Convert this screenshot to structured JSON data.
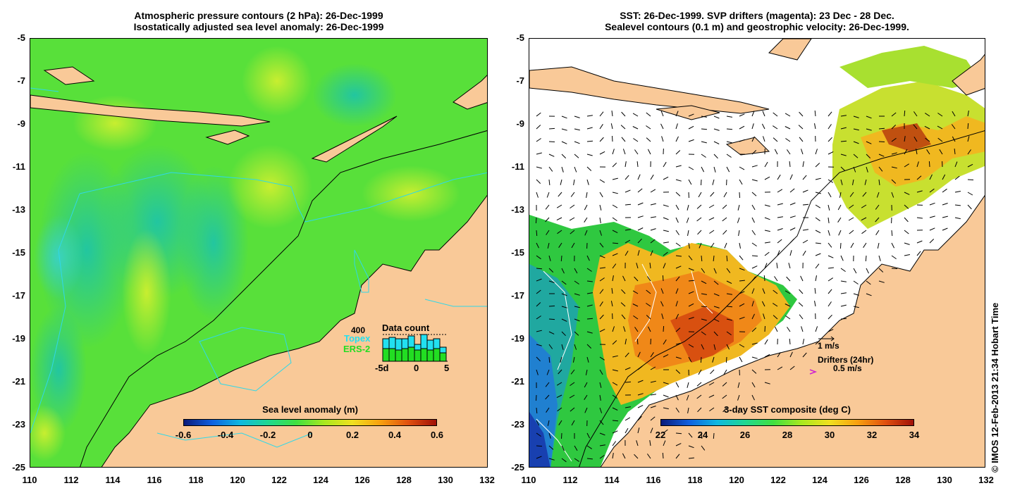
{
  "left_panel": {
    "title_line1": "Atmospheric pressure contours (2 hPa): 26-Dec-1999",
    "title_line2": "Isostatically adjusted sea level anomaly: 26-Dec-1999",
    "colorbar_label": "Sea level anomaly (m)",
    "colorbar_ticks": [
      "-0.6",
      "-0.4",
      "-0.2",
      "0",
      "0.2",
      "0.4",
      "0.6"
    ],
    "data_count": {
      "title": "Data count",
      "max_label": "400",
      "series": [
        {
          "name": "Topex",
          "color": "#22e0f0"
        },
        {
          "name": "ERS-2",
          "color": "#22dd22"
        }
      ],
      "x_ticks": [
        "-5d",
        "0",
        "5"
      ],
      "topex_values": [
        0.8,
        0.85,
        0.8,
        0.8,
        0.9,
        0.6,
        0.95,
        0.75,
        0.8,
        0.5
      ],
      "ers2_values": [
        0.45,
        0.45,
        0.4,
        0.45,
        0.5,
        0.4,
        0.45,
        0.4,
        0.45,
        0.3
      ]
    }
  },
  "right_panel": {
    "title_line1": "SST: 26-Dec-1999. SVP drifters (magenta): 23 Dec - 28 Dec.",
    "title_line2": "Sealevel contours (0.1 m) and geostrophic velocity: 26-Dec-1999.",
    "colorbar_label": "3-day SST composite (deg C)",
    "colorbar_ticks": [
      "22",
      "24",
      "26",
      "28",
      "30",
      "32",
      "34"
    ],
    "vector_legend": "1 m/s",
    "drifter_legend_title": "Drifters (24hr)",
    "drifter_legend_value": "0.5 m/s"
  },
  "axes": {
    "y_ticks": [
      "-5",
      "-7",
      "-9",
      "-11",
      "-13",
      "-15",
      "-17",
      "-19",
      "-21",
      "-23",
      "-25"
    ],
    "x_ticks": [
      "110",
      "112",
      "114",
      "116",
      "118",
      "120",
      "122",
      "124",
      "126",
      "128",
      "130",
      "132"
    ],
    "lon_range": [
      110,
      132
    ],
    "lat_range": [
      -25,
      -5
    ]
  },
  "copyright": "© IMOS 12-Feb-2013 21:34 Hobart Time",
  "colors": {
    "land": "#f9c998",
    "ocean_base": "#58e03a",
    "pressure_contour": "#30d8e8"
  }
}
